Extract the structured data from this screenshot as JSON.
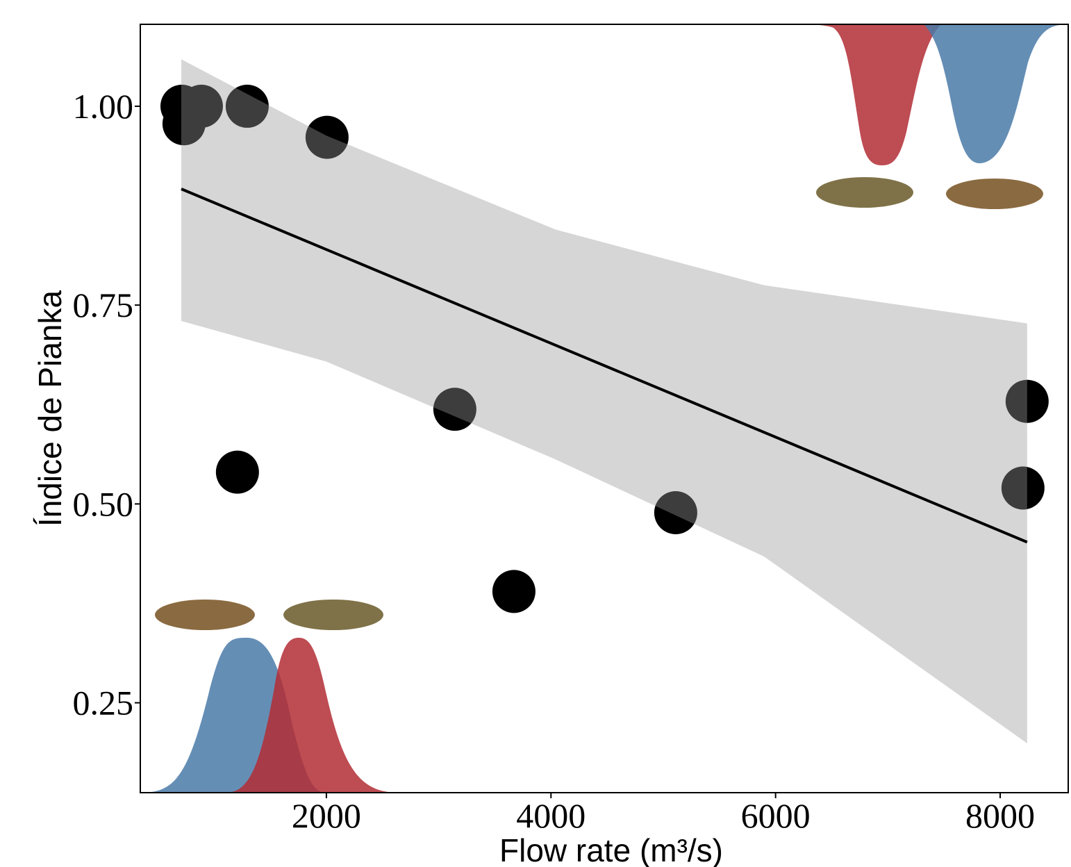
{
  "chart_data": {
    "type": "scatter",
    "x_label": "Flow rate (m³/s)",
    "y_label": "Índice de Pianka",
    "x": [
      714,
      887,
      732,
      1295,
      2006,
      1208,
      3144,
      3670,
      5111,
      8240,
      8203
    ],
    "values": [
      1.0,
      1.0,
      0.978,
      1.0,
      0.961,
      0.54,
      0.619,
      0.39,
      0.489,
      0.629,
      0.52
    ],
    "color": "#000000",
    "fit": {
      "x": [
        708,
        8240
      ],
      "values": [
        0.896,
        0.452
      ],
      "color": "#000000"
    },
    "band": {
      "x": [
        708,
        2000,
        4040,
        5896,
        8240
      ],
      "upper": [
        1.059,
        0.963,
        0.845,
        0.775,
        0.727
      ],
      "lower": [
        0.73,
        0.679,
        0.556,
        0.434,
        0.199
      ],
      "color": "#999999"
    },
    "xlim": [
      343,
      8606
    ],
    "ylim": [
      0.137,
      1.103
    ],
    "xticks": [
      2000,
      4000,
      6000,
      8000
    ],
    "yticks": [
      {
        "value": 0.25,
        "label": "0.25"
      },
      {
        "value": 0.5,
        "label": "0.50"
      },
      {
        "value": 0.75,
        "label": "0.75"
      },
      {
        "value": 1.0,
        "label": "1.00"
      }
    ]
  }
}
